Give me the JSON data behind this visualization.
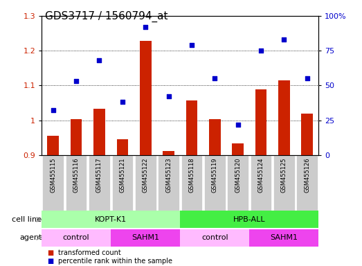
{
  "title": "GDS3717 / 1560794_at",
  "categories": [
    "GSM455115",
    "GSM455116",
    "GSM455117",
    "GSM455121",
    "GSM455122",
    "GSM455123",
    "GSM455118",
    "GSM455119",
    "GSM455120",
    "GSM455124",
    "GSM455125",
    "GSM455126"
  ],
  "transformed_count": [
    0.955,
    1.003,
    1.033,
    0.946,
    1.228,
    0.912,
    1.057,
    1.003,
    0.933,
    1.088,
    1.115,
    1.018
  ],
  "percentile_rank": [
    32,
    53,
    68,
    38,
    92,
    42,
    79,
    55,
    22,
    75,
    83,
    55
  ],
  "bar_color": "#cc2200",
  "dot_color": "#0000cc",
  "ylim_left": [
    0.9,
    1.3
  ],
  "ylim_right": [
    0,
    100
  ],
  "yticks_left": [
    0.9,
    1.0,
    1.1,
    1.2,
    1.3
  ],
  "ytick_labels_left": [
    "0.9",
    "1",
    "1.1",
    "1.2",
    "1.3"
  ],
  "yticks_right": [
    0,
    25,
    50,
    75,
    100
  ],
  "ytick_labels_right": [
    "0",
    "25",
    "50",
    "75",
    "100%"
  ],
  "cell_line_groups": [
    {
      "label": "KOPT-K1",
      "start": 0,
      "end": 6,
      "color": "#aaffaa"
    },
    {
      "label": "HPB-ALL",
      "start": 6,
      "end": 12,
      "color": "#44ee44"
    }
  ],
  "agent_groups": [
    {
      "label": "control",
      "start": 0,
      "end": 3,
      "color": "#ffbbff"
    },
    {
      "label": "SAHM1",
      "start": 3,
      "end": 6,
      "color": "#ee44ee"
    },
    {
      "label": "control",
      "start": 6,
      "end": 9,
      "color": "#ffbbff"
    },
    {
      "label": "SAHM1",
      "start": 9,
      "end": 12,
      "color": "#ee44ee"
    }
  ],
  "legend_bar_label": "transformed count",
  "legend_dot_label": "percentile rank within the sample",
  "cell_line_label": "cell line",
  "agent_label": "agent",
  "bar_width": 0.5,
  "tick_label_color_left": "#cc2200",
  "tick_label_color_right": "#0000cc",
  "background_color": "#ffffff",
  "plot_bg_color": "#ffffff",
  "xticklabel_bg_color": "#cccccc",
  "grid_color": "black",
  "title_fontsize": 11,
  "axis_fontsize": 8,
  "label_fontsize": 8,
  "xticklabel_fontsize": 6,
  "legend_fontsize": 7
}
